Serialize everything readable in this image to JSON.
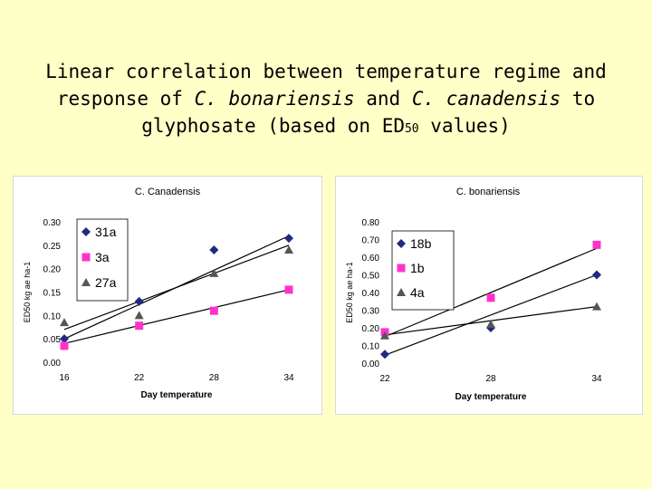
{
  "slide": {
    "title_line1": "Linear correlation between temperature regime and",
    "title_line2_a": "response of ",
    "title_line2_b": "C. bonariensis",
    "title_line2_c": " and ",
    "title_line2_d": "C. canadensis",
    "title_line2_e": " to",
    "title_line3_a": "glyphosate (based on ED",
    "title_line3_sub": "50",
    "title_line3_b": " values)"
  },
  "chart_data": [
    {
      "type": "scatter",
      "title": "C. Canadensis",
      "xlabel": "Day temperature",
      "ylabel": "ED50 kg ae ha-1",
      "x_ticks": [
        16,
        22,
        28,
        34
      ],
      "xlim": [
        16,
        34
      ],
      "ylim": [
        0,
        0.3
      ],
      "y_ticks": [
        "0.00",
        "0.05",
        "0.10",
        "0.15",
        "0.20",
        "0.25",
        "0.30"
      ],
      "legend_position": "top-left",
      "series": [
        {
          "name": "31a",
          "marker": "diamond",
          "color": "#1f2a80",
          "x": [
            16,
            22,
            28,
            34
          ],
          "y": [
            0.05,
            0.13,
            0.24,
            0.265
          ],
          "trend": [
            [
              16,
              0.05
            ],
            [
              34,
              0.27
            ]
          ]
        },
        {
          "name": "3a",
          "marker": "square",
          "color": "#ff33cc",
          "x": [
            16,
            22,
            28,
            34
          ],
          "y": [
            0.035,
            0.078,
            0.11,
            0.155
          ],
          "trend": [
            [
              16,
              0.04
            ],
            [
              34,
              0.155
            ]
          ]
        },
        {
          "name": "27a",
          "marker": "triangle",
          "color": "#555555",
          "x": [
            16,
            22,
            28,
            34
          ],
          "y": [
            0.085,
            0.1,
            0.19,
            0.24
          ],
          "trend": [
            [
              16,
              0.07
            ],
            [
              34,
              0.25
            ]
          ]
        }
      ]
    },
    {
      "type": "scatter",
      "title": "C. bonariensis",
      "xlabel": "Day temperature",
      "ylabel": "ED50 kg ae ha-1",
      "x_ticks": [
        22,
        28,
        34
      ],
      "xlim": [
        22,
        34
      ],
      "ylim": [
        0,
        0.8
      ],
      "y_ticks": [
        "0.00",
        "0.10",
        "0.20",
        "0.30",
        "0.40",
        "0.50",
        "0.60",
        "0.70",
        "0.80"
      ],
      "legend_position": "top-left",
      "series": [
        {
          "name": "18b",
          "marker": "diamond",
          "color": "#1f2a80",
          "x": [
            22,
            28,
            34
          ],
          "y": [
            0.05,
            0.2,
            0.5
          ],
          "trend": [
            [
              22,
              0.045
            ],
            [
              34,
              0.5
            ]
          ]
        },
        {
          "name": "1b",
          "marker": "square",
          "color": "#ff33cc",
          "x": [
            22,
            28,
            34
          ],
          "y": [
            0.175,
            0.37,
            0.67
          ],
          "trend": [
            [
              22,
              0.15
            ],
            [
              34,
              0.65
            ]
          ]
        },
        {
          "name": "4a",
          "marker": "triangle",
          "color": "#555555",
          "x": [
            22,
            28,
            34
          ],
          "y": [
            0.155,
            0.22,
            0.32
          ],
          "trend": [
            [
              22,
              0.16
            ],
            [
              34,
              0.32
            ]
          ]
        }
      ]
    }
  ]
}
